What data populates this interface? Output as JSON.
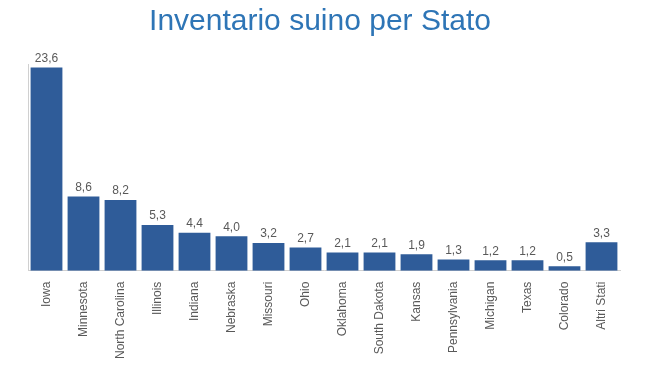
{
  "chart_data": {
    "type": "bar",
    "title": "Inventario suino per Stato",
    "categories": [
      "Iowa",
      "Minnesota",
      "North Carolina",
      "Illinois",
      "Indiana",
      "Nebraska",
      "Missouri",
      "Ohio",
      "Oklahoma",
      "South Dakota",
      "Kansas",
      "Pennsylvania",
      "Michigan",
      "Texas",
      "Colorado",
      "Altri Stati"
    ],
    "values": [
      23.6,
      8.6,
      8.2,
      5.3,
      4.4,
      4.0,
      3.2,
      2.7,
      2.1,
      2.1,
      1.9,
      1.3,
      1.2,
      1.2,
      0.5,
      3.3
    ],
    "value_labels": [
      "23,6",
      "8,6",
      "8,2",
      "5,3",
      "4,4",
      "4,0",
      "3,2",
      "2,7",
      "2,1",
      "2,1",
      "1,9",
      "1,3",
      "1,2",
      "1,2",
      "0,5",
      "3,3"
    ],
    "color": "#2f5c99",
    "ylim": [
      0,
      24
    ],
    "data_labels": true,
    "tick_labels": "x",
    "grid": false
  }
}
